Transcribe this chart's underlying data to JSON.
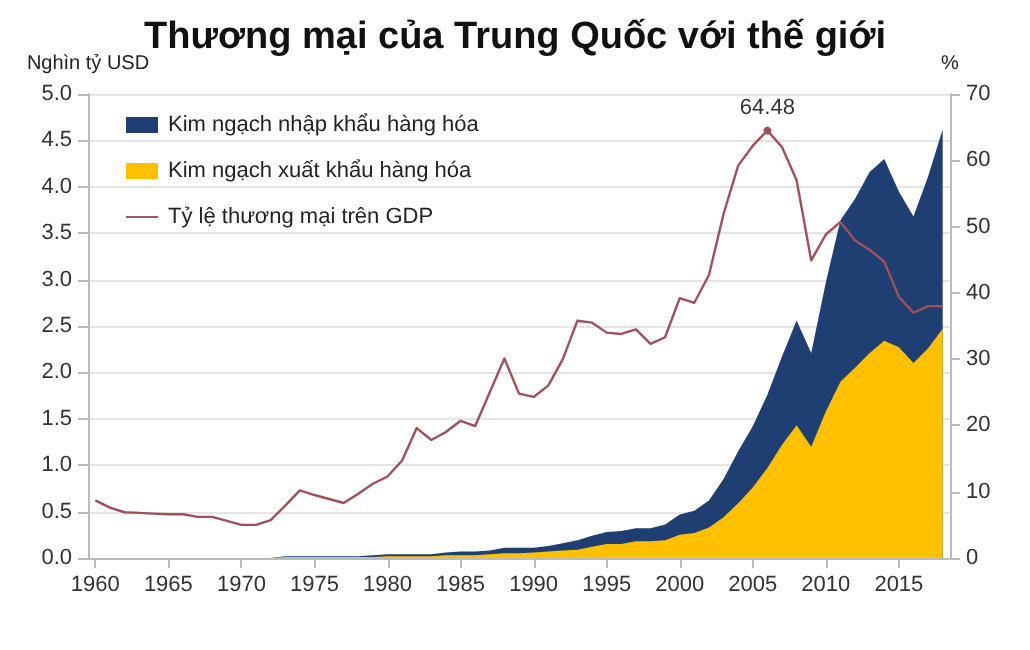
{
  "chart_data": {
    "type": "area",
    "title": "Thương mại của Trung Quốc với thế giới",
    "ylabel": "Nghìn tỷ USD",
    "y2label": "%",
    "stacked": true,
    "grid": "y",
    "legend": "top left",
    "marker": "none",
    "x": [
      1960,
      1961,
      1962,
      1963,
      1964,
      1965,
      1966,
      1967,
      1968,
      1969,
      1970,
      1971,
      1972,
      1973,
      1974,
      1975,
      1976,
      1977,
      1978,
      1979,
      1980,
      1981,
      1982,
      1983,
      1984,
      1985,
      1986,
      1987,
      1988,
      1989,
      1990,
      1991,
      1992,
      1993,
      1994,
      1995,
      1996,
      1997,
      1998,
      1999,
      2000,
      2001,
      2002,
      2003,
      2004,
      2005,
      2006,
      2007,
      2008,
      2009,
      2010,
      2011,
      2012,
      2013,
      2014,
      2015,
      2016,
      2017,
      2018
    ],
    "xlim": [
      1959.5,
      2018.5
    ],
    "xticks": [
      1960,
      1965,
      1970,
      1975,
      1980,
      1985,
      1990,
      1995,
      2000,
      2005,
      2010,
      2015
    ],
    "ylim": [
      0,
      5
    ],
    "yticks": [
      {
        "value": 0,
        "label": "0.0"
      },
      0.5,
      {
        "value": 1,
        "label": "1.0"
      },
      1.5,
      {
        "value": 2,
        "label": "2.0"
      },
      2.5,
      {
        "value": 3,
        "label": "3.0"
      },
      3.5,
      {
        "value": 4,
        "label": "4.0"
      },
      4.5,
      {
        "value": 5,
        "label": "5.0"
      }
    ],
    "y2lim": [
      0,
      70
    ],
    "y2ticks": [
      0,
      10,
      20,
      30,
      40,
      50,
      60,
      70
    ],
    "series": [
      {
        "name": "Kim ngạch xuất khẩu hàng hóa",
        "color": "#ffc000",
        "values": [
          0,
          0,
          0,
          0,
          0,
          0,
          0,
          0,
          0,
          0,
          0,
          0,
          0,
          0.01,
          0.01,
          0.01,
          0.01,
          0.01,
          0.01,
          0.01,
          0.02,
          0.02,
          0.02,
          0.02,
          0.03,
          0.03,
          0.03,
          0.04,
          0.05,
          0.05,
          0.06,
          0.07,
          0.08,
          0.09,
          0.12,
          0.15,
          0.15,
          0.18,
          0.18,
          0.19,
          0.25,
          0.27,
          0.33,
          0.44,
          0.59,
          0.76,
          0.97,
          1.22,
          1.43,
          1.2,
          1.58,
          1.9,
          2.05,
          2.21,
          2.34,
          2.27,
          2.1,
          2.26,
          2.47
        ]
      },
      {
        "name": "Kim ngạch nhập khẩu hàng hóa",
        "color": "#1f3f73",
        "values": [
          0,
          0,
          0,
          0,
          0,
          0,
          0,
          0,
          0,
          0,
          0,
          0,
          0,
          0.01,
          0.01,
          0.01,
          0.01,
          0.01,
          0.01,
          0.02,
          0.02,
          0.02,
          0.02,
          0.02,
          0.03,
          0.04,
          0.04,
          0.04,
          0.06,
          0.06,
          0.05,
          0.06,
          0.08,
          0.1,
          0.12,
          0.13,
          0.14,
          0.14,
          0.14,
          0.17,
          0.22,
          0.24,
          0.29,
          0.41,
          0.56,
          0.66,
          0.79,
          0.95,
          1.13,
          1.01,
          1.39,
          1.74,
          1.82,
          1.95,
          1.96,
          1.68,
          1.58,
          1.85,
          2.15
        ]
      },
      {
        "name": "Tỷ lệ thương mại trên GDP",
        "type": "line",
        "axis": "y2",
        "color": "#a0505a",
        "line_style": "solid",
        "values": [
          8.7,
          7.6,
          6.9,
          6.8,
          6.7,
          6.6,
          6.6,
          6.2,
          6.2,
          5.6,
          5.0,
          5.0,
          5.7,
          7.9,
          10.2,
          9.5,
          8.9,
          8.3,
          9.7,
          11.2,
          12.3,
          14.7,
          19.6,
          17.8,
          19.0,
          20.7,
          19.9,
          25.0,
          30.1,
          24.8,
          24.3,
          26.0,
          30.0,
          35.8,
          35.5,
          34.0,
          33.8,
          34.5,
          32.3,
          33.3,
          39.2,
          38.5,
          42.7,
          51.9,
          59.2,
          62.2,
          64.48,
          62.0,
          57.0,
          44.9,
          48.8,
          50.7,
          47.9,
          46.5,
          44.7,
          39.4,
          37.0,
          38.0,
          38.0
        ]
      }
    ],
    "annotations": [
      "64.48"
    ]
  }
}
